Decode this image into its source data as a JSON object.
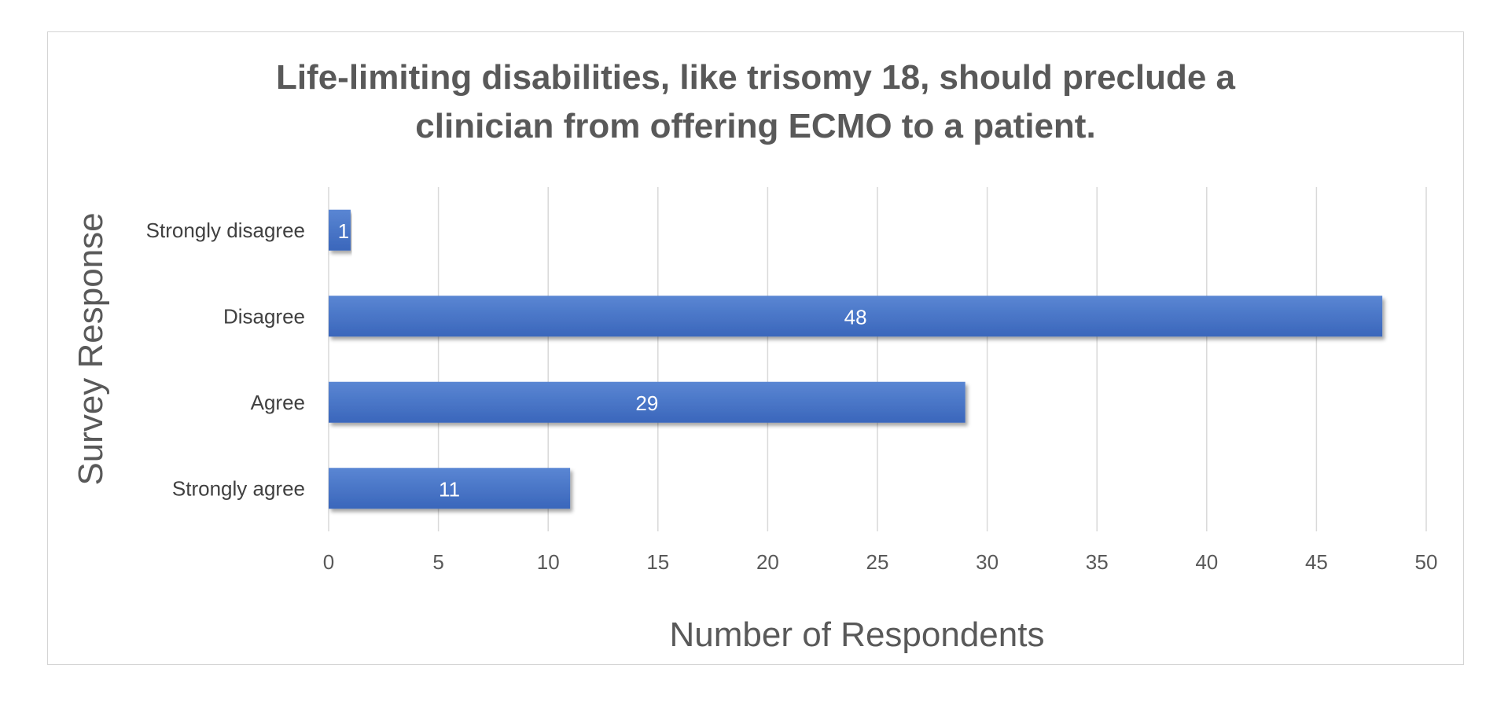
{
  "chart_data": {
    "type": "bar",
    "orientation": "horizontal",
    "title_lines": [
      "Life-limiting disabilities, like trisomy 18, should preclude a",
      "clinician from offering ECMO to a patient."
    ],
    "xlabel": "Number of Respondents",
    "ylabel": "Survey Response",
    "categories": [
      "Strongly disagree",
      "Disagree",
      "Agree",
      "Strongly agree"
    ],
    "values": [
      1,
      48,
      29,
      11
    ],
    "xlim": [
      0,
      50
    ],
    "xticks": [
      "0",
      "5",
      "10",
      "15",
      "20",
      "25",
      "30",
      "35",
      "40",
      "45",
      "50"
    ],
    "grid": "vertical",
    "data_labels": true,
    "bar_color": "#4472c4",
    "legend": "none"
  }
}
